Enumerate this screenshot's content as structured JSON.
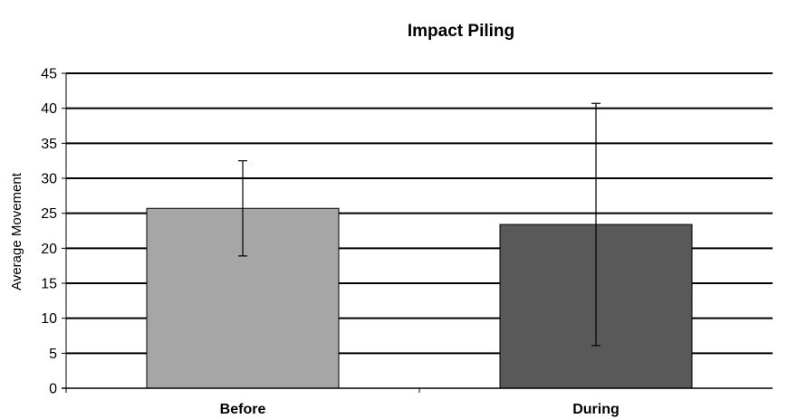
{
  "chart_data": {
    "type": "bar",
    "title": "Impact Piling",
    "xlabel": "",
    "ylabel": "Average Movement",
    "ylim": [
      0,
      45
    ],
    "yticks": [
      0,
      5,
      10,
      15,
      20,
      25,
      30,
      35,
      40,
      45
    ],
    "categories": [
      "Before",
      "During"
    ],
    "values": [
      25.7,
      23.4
    ],
    "error_bars": [
      {
        "low": 18.9,
        "high": 32.5
      },
      {
        "low": 6.1,
        "high": 40.7
      }
    ],
    "bar_colors": [
      "#a6a6a6",
      "#595959"
    ],
    "grid": true,
    "legend": "none"
  }
}
